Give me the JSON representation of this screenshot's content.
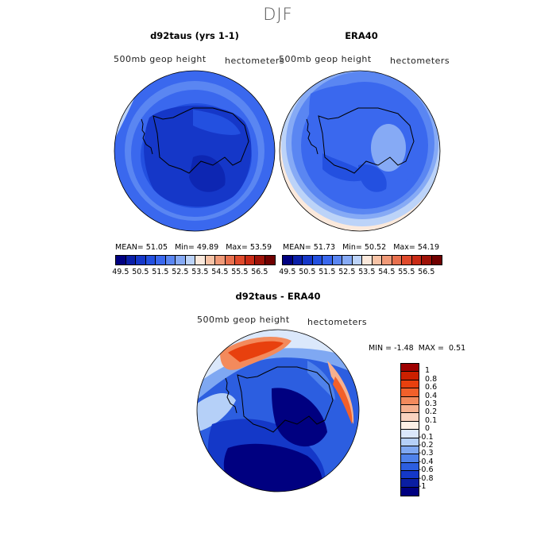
{
  "main_title": "DJF",
  "panels": {
    "model": {
      "title": "d92taus (yrs 1-1)",
      "var_label": "500mb geop height",
      "units": "hectometers",
      "mean_label": "MEAN=",
      "mean": "51.05",
      "min_label": "Min=",
      "min": "49.89",
      "max_label": "Max=",
      "max": "53.59"
    },
    "obs": {
      "title": "ERA40",
      "var_label": "500mb geop height",
      "units": "hectometers",
      "mean_label": "MEAN=",
      "mean": "51.73",
      "min_label": "Min=",
      "min": "50.52",
      "max_label": "Max=",
      "max": "54.19"
    },
    "diff": {
      "title": "d92taus - ERA40",
      "var_label": "500mb geop height",
      "units": "hectometers",
      "min_label": "MIN =",
      "min": "-1.48",
      "max_label": "MAX =",
      "max": "0.51"
    }
  },
  "chart_data": [
    {
      "type": "heatmap",
      "title": "d92taus (yrs 1-1)",
      "projection": "south polar stereographic",
      "variable": "500mb geop height",
      "units": "hectometers",
      "mean": 51.05,
      "min": 49.89,
      "max": 53.59,
      "levels": [
        49.5,
        50,
        50.5,
        51,
        51.5,
        52,
        52.5,
        53,
        53.5,
        54,
        54.5,
        55,
        55.5,
        56,
        56.5
      ]
    },
    {
      "type": "heatmap",
      "title": "ERA40",
      "projection": "south polar stereographic",
      "variable": "500mb geop height",
      "units": "hectometers",
      "mean": 51.73,
      "min": 50.52,
      "max": 54.19,
      "levels": [
        49.5,
        50,
        50.5,
        51,
        51.5,
        52,
        52.5,
        53,
        53.5,
        54,
        54.5,
        55,
        55.5,
        56,
        56.5
      ]
    },
    {
      "type": "heatmap",
      "title": "d92taus - ERA40",
      "projection": "south polar stereographic",
      "variable": "500mb geop height",
      "units": "hectometers",
      "min": -1.48,
      "max": 0.51,
      "levels": [
        -1,
        -0.8,
        -0.6,
        -0.4,
        -0.3,
        -0.2,
        -0.1,
        0,
        0.1,
        0.2,
        0.3,
        0.4,
        0.6,
        0.8,
        1
      ]
    }
  ],
  "colorbar_abs": {
    "colors": [
      "#000080",
      "#0a1fa8",
      "#1537c8",
      "#2350e0",
      "#3a68ee",
      "#5a86f2",
      "#86aaf5",
      "#bcd3f8",
      "#fbe9dc",
      "#f7c3a6",
      "#f09a78",
      "#e8704e",
      "#df4a2c",
      "#c92b16",
      "#9e1208",
      "#700000"
    ],
    "tick_labels": [
      "49.5",
      "50.5",
      "51.5",
      "52.5",
      "53.5",
      "54.5",
      "55.5",
      "56.5"
    ]
  },
  "colorbar_diff": {
    "colors": [
      "#9e0000",
      "#cc2000",
      "#e8400e",
      "#f2602a",
      "#f38a5c",
      "#f6b08e",
      "#fad3bf",
      "#fdf0e6",
      "#dbe8fb",
      "#b5d0f8",
      "#7fa8f2",
      "#4f82eb",
      "#2c5ee0",
      "#1438c8",
      "#0a1ea2",
      "#000080"
    ],
    "tick_labels": [
      "1",
      "0.8",
      "0.6",
      "0.4",
      "0.3",
      "0.2",
      "0.1",
      "0",
      "-0.1",
      "-0.2",
      "-0.3",
      "-0.4",
      "-0.6",
      "-0.8",
      "-1"
    ]
  }
}
